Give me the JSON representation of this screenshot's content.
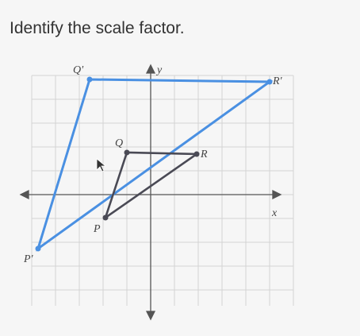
{
  "question": "Identify the scale factor.",
  "graph": {
    "axis_labels": {
      "x": "x",
      "y": "y"
    },
    "image_labels": {
      "P": "P'",
      "Q": "Q'",
      "R": "R'"
    },
    "pre_image_labels": {
      "P": "P",
      "Q": "Q",
      "R": "R"
    }
  }
}
